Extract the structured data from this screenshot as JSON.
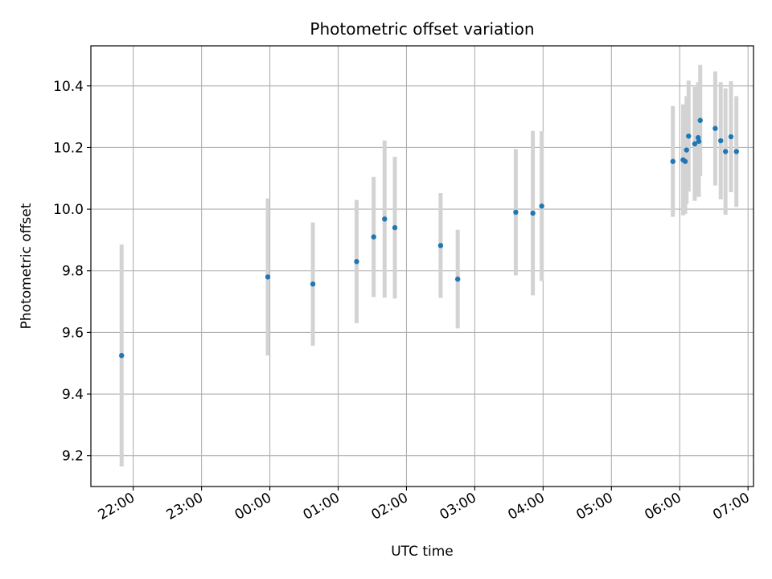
{
  "chart_data": {
    "type": "scatter",
    "title": "Photometric offset variation",
    "xlabel": "UTC time",
    "ylabel": "Photometric offset",
    "grid": true,
    "legend": "none",
    "x_unit": "hours (UTC, relative to 00:00; negative = previous day)",
    "xlim": [
      -2.62,
      7.08
    ],
    "ylim": [
      9.1,
      10.53
    ],
    "xticks": [
      {
        "value": -2,
        "label": "22:00"
      },
      {
        "value": -1,
        "label": "23:00"
      },
      {
        "value": 0,
        "label": "00:00"
      },
      {
        "value": 1,
        "label": "01:00"
      },
      {
        "value": 2,
        "label": "02:00"
      },
      {
        "value": 3,
        "label": "03:00"
      },
      {
        "value": 4,
        "label": "04:00"
      },
      {
        "value": 5,
        "label": "05:00"
      },
      {
        "value": 6,
        "label": "06:00"
      },
      {
        "value": 7,
        "label": "07:00"
      }
    ],
    "yticks": [
      {
        "value": 9.2,
        "label": "9.2"
      },
      {
        "value": 9.4,
        "label": "9.4"
      },
      {
        "value": 9.6,
        "label": "9.6"
      },
      {
        "value": 9.8,
        "label": "9.8"
      },
      {
        "value": 10.0,
        "label": "10.0"
      },
      {
        "value": 10.2,
        "label": "10.2"
      },
      {
        "value": 10.4,
        "label": "10.4"
      }
    ],
    "marker_color": "#1f77b4",
    "errorbar_color": "#d3d3d3",
    "points": [
      {
        "x": -2.17,
        "y": 9.525,
        "err": 0.36
      },
      {
        "x": -0.03,
        "y": 9.78,
        "err": 0.255
      },
      {
        "x": 0.63,
        "y": 9.757,
        "err": 0.2
      },
      {
        "x": 1.27,
        "y": 9.83,
        "err": 0.2
      },
      {
        "x": 1.52,
        "y": 9.91,
        "err": 0.195
      },
      {
        "x": 1.68,
        "y": 9.968,
        "err": 0.255
      },
      {
        "x": 1.83,
        "y": 9.94,
        "err": 0.23
      },
      {
        "x": 2.5,
        "y": 9.882,
        "err": 0.17
      },
      {
        "x": 2.75,
        "y": 9.773,
        "err": 0.16
      },
      {
        "x": 3.6,
        "y": 9.99,
        "err": 0.205
      },
      {
        "x": 3.85,
        "y": 9.987,
        "err": 0.267
      },
      {
        "x": 3.98,
        "y": 10.01,
        "err": 0.243
      },
      {
        "x": 5.9,
        "y": 10.155,
        "err": 0.18
      },
      {
        "x": 6.05,
        "y": 10.16,
        "err": 0.18
      },
      {
        "x": 6.08,
        "y": 10.155,
        "err": 0.17
      },
      {
        "x": 6.1,
        "y": 10.192,
        "err": 0.175
      },
      {
        "x": 6.13,
        "y": 10.237,
        "err": 0.18
      },
      {
        "x": 6.22,
        "y": 10.212,
        "err": 0.185
      },
      {
        "x": 6.27,
        "y": 10.232,
        "err": 0.18
      },
      {
        "x": 6.28,
        "y": 10.22,
        "err": 0.18
      },
      {
        "x": 6.3,
        "y": 10.288,
        "err": 0.18
      },
      {
        "x": 6.52,
        "y": 10.262,
        "err": 0.185
      },
      {
        "x": 6.6,
        "y": 10.222,
        "err": 0.19
      },
      {
        "x": 6.67,
        "y": 10.187,
        "err": 0.205
      },
      {
        "x": 6.75,
        "y": 10.235,
        "err": 0.18
      },
      {
        "x": 6.83,
        "y": 10.187,
        "err": 0.18
      }
    ]
  }
}
